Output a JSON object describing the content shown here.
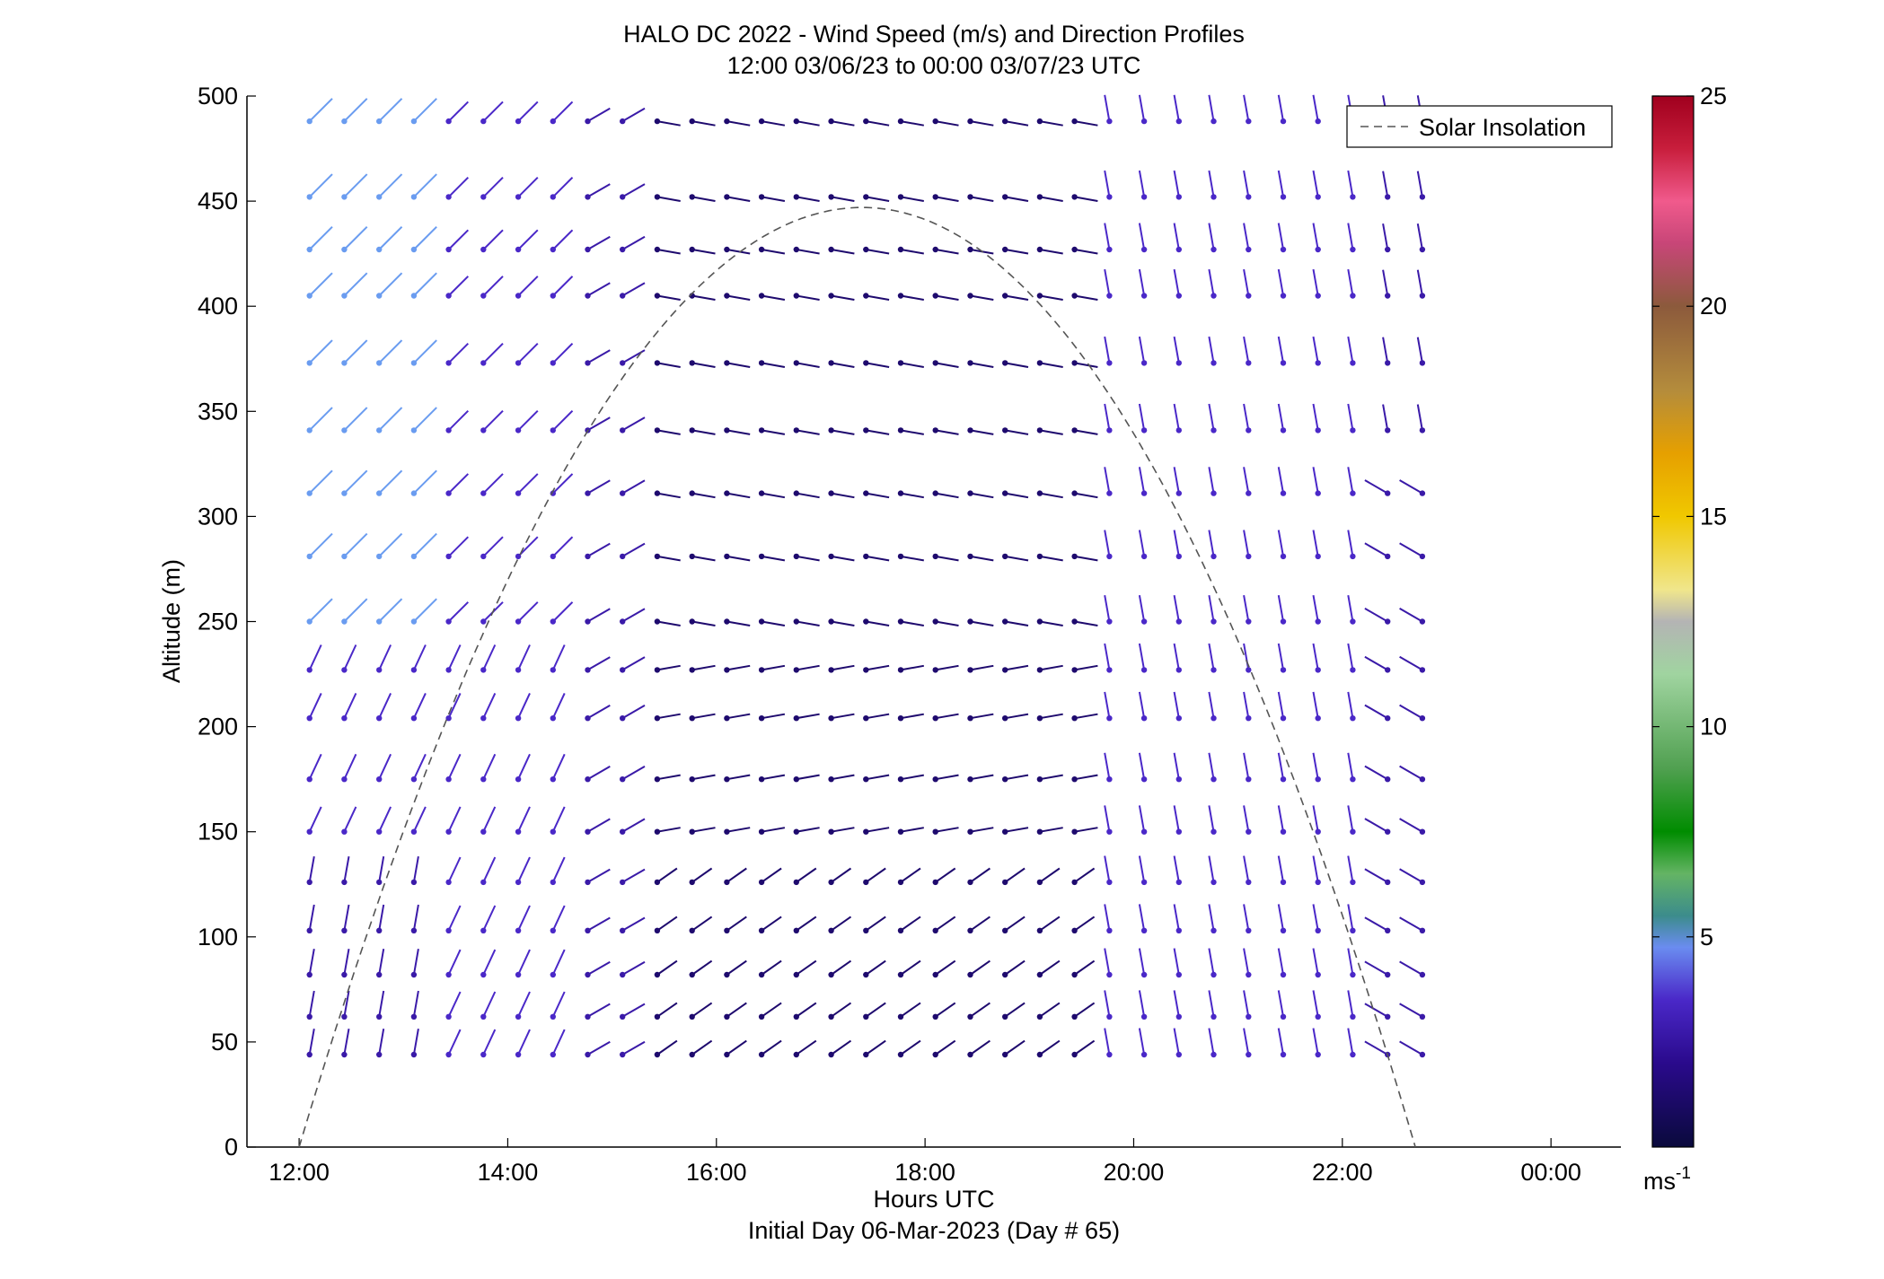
{
  "chart_data": {
    "type": "scatter",
    "title": "HALO DC 2022 - Wind Speed (m/s) and Direction Profiles",
    "subtitle": "12:00 03/06/23 to 00:00 03/07/23  UTC",
    "xlabel": "Hours UTC",
    "xlabel2": "Initial Day 06-Mar-2023 (Day # 65)",
    "ylabel": "Altitude (m)",
    "xlim": [
      11.5,
      24.67
    ],
    "ylim": [
      0,
      500
    ],
    "x_ticks": [
      12,
      14,
      16,
      18,
      20,
      22,
      24
    ],
    "x_tick_labels": [
      "12:00",
      "14:00",
      "16:00",
      "18:00",
      "20:00",
      "22:00",
      "00:00"
    ],
    "y_ticks": [
      0,
      50,
      100,
      150,
      200,
      250,
      300,
      350,
      400,
      450,
      500
    ],
    "y_tick_labels": [
      "0",
      "50",
      "100",
      "150",
      "200",
      "250",
      "300",
      "350",
      "400",
      "450",
      "500"
    ],
    "legend": {
      "entries": [
        "Solar Insolation"
      ],
      "placement": "top-right"
    },
    "colorbar": {
      "range": [
        0,
        25
      ],
      "ticks": [
        5,
        10,
        15,
        20,
        25
      ],
      "tick_labels": [
        "5",
        "10",
        "15",
        "20",
        "25"
      ],
      "unit_base": "ms",
      "unit_exp": "-1",
      "stops": [
        "#0a0a3c",
        "#2a0a8c",
        "#4a28c8",
        "#6a8cf0",
        "#3c8c8c",
        "#64b464",
        "#008c00",
        "#50a050",
        "#a0d4a0",
        "#b4b4b4",
        "#f0e68c",
        "#f0c800",
        "#e6a000",
        "#b48c3c",
        "#8c5a3c",
        "#c84678",
        "#f05a8c",
        "#c81e3c",
        "#a0001e"
      ]
    },
    "solar_insolation": {
      "start": 12.0,
      "end": 22.7,
      "peak_time": 17.4,
      "peak_altitude": 447
    },
    "wind_barbs": {
      "altitudes": [
        44,
        62,
        82,
        103,
        126,
        150,
        175,
        204,
        227,
        250,
        281,
        311,
        341,
        373,
        405,
        427,
        452,
        488
      ],
      "note_scale": "values are wind speed in m/s; direction in degrees from north the line points to"
    }
  }
}
